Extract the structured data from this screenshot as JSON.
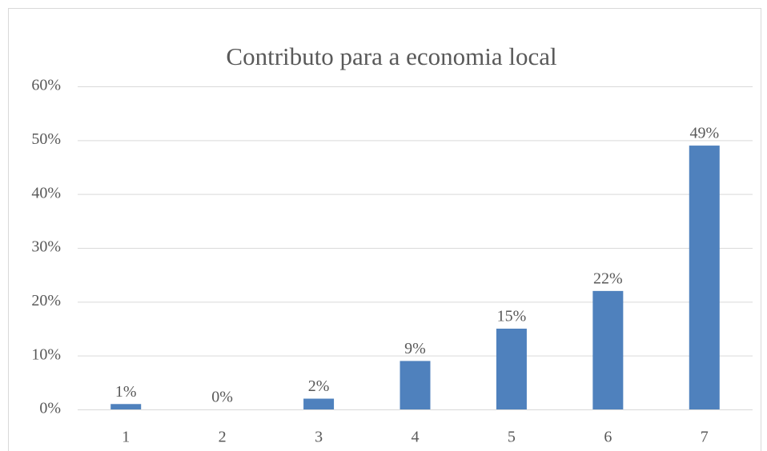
{
  "chart_data": {
    "type": "bar",
    "title": "Contributo para a economia local",
    "categories": [
      "1",
      "2",
      "3",
      "4",
      "5",
      "6",
      "7"
    ],
    "values": [
      1,
      0,
      2,
      9,
      15,
      22,
      49
    ],
    "value_labels": [
      "1%",
      "0%",
      "2%",
      "9%",
      "15%",
      "22%",
      "49%"
    ],
    "color": "#4f81bd",
    "ylim": [
      0,
      60
    ],
    "yticks": [
      {
        "value": 0,
        "label": "0%"
      },
      {
        "value": 10,
        "label": "10%"
      },
      {
        "value": 20,
        "label": "20%"
      },
      {
        "value": 30,
        "label": "30%"
      },
      {
        "value": 40,
        "label": "40%"
      },
      {
        "value": 50,
        "label": "50%"
      },
      {
        "value": 60,
        "label": "60%"
      }
    ],
    "grid": true
  }
}
